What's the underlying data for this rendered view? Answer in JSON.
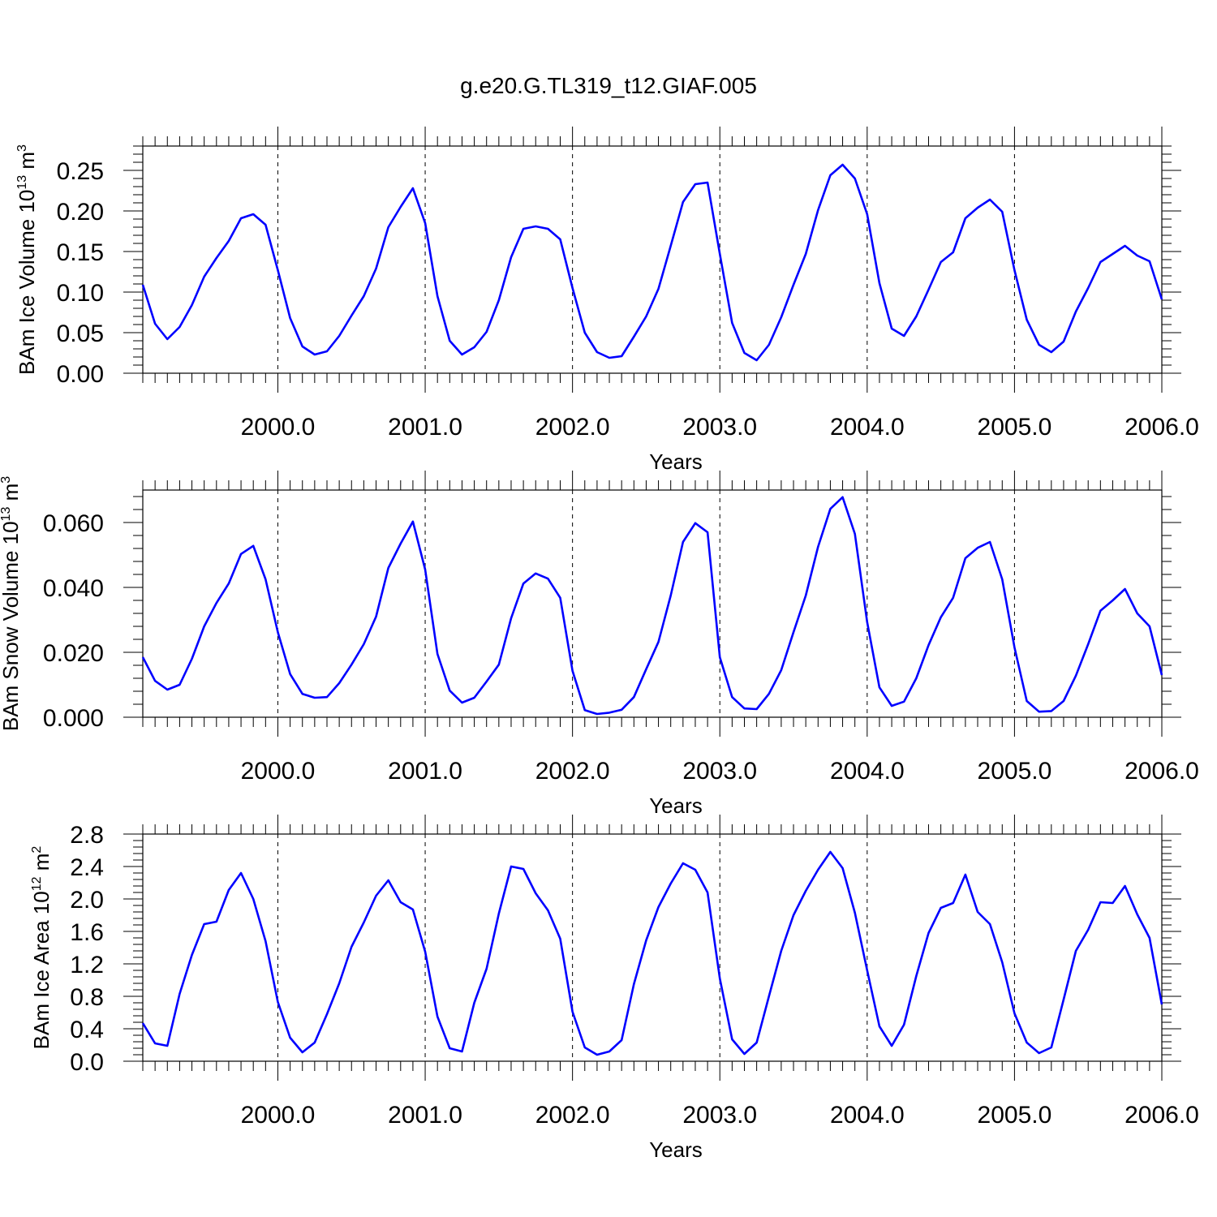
{
  "title": "g.e20.G.TL319_t12.GIAF.005",
  "line_color": "#0000ff",
  "chart_data": [
    {
      "type": "line",
      "ylabel_main": "BAm Ice Volume 10",
      "ylabel_exp": "13",
      "ylabel_unit": " m",
      "ylabel_unit_exp": "3",
      "xlabel": "Years",
      "xlim": [
        1999.0833,
        2006.0
      ],
      "ylim": [
        0.0,
        0.28
      ],
      "yticks": [
        0.0,
        0.05,
        0.1,
        0.15,
        0.2,
        0.25
      ],
      "yticklabels": [
        "0.00",
        "0.05",
        "0.10",
        "0.15",
        "0.20",
        "0.25"
      ],
      "xticks": [
        2000,
        2001,
        2002,
        2003,
        2004,
        2005,
        2006
      ],
      "xticklabels": [
        "2000.0",
        "2001.0",
        "2002.0",
        "2003.0",
        "2004.0",
        "2005.0",
        "2006.0"
      ],
      "x_start": 1999.0833,
      "x_step": 0.083333,
      "series": [
        {
          "values": [
            0.109,
            0.061,
            0.042,
            0.057,
            0.084,
            0.119,
            0.142,
            0.163,
            0.191,
            0.196,
            0.183,
            0.127,
            0.068,
            0.033,
            0.023,
            0.027,
            0.046,
            0.071,
            0.095,
            0.129,
            0.18,
            0.205,
            0.228,
            0.185,
            0.095,
            0.04,
            0.023,
            0.032,
            0.051,
            0.09,
            0.143,
            0.178,
            0.181,
            0.178,
            0.165,
            0.105,
            0.05,
            0.026,
            0.019,
            0.021,
            0.045,
            0.07,
            0.104,
            0.157,
            0.211,
            0.233,
            0.235,
            0.147,
            0.062,
            0.025,
            0.016,
            0.035,
            0.069,
            0.109,
            0.147,
            0.201,
            0.244,
            0.257,
            0.24,
            0.196,
            0.111,
            0.055,
            0.046,
            0.07,
            0.103,
            0.137,
            0.149,
            0.191,
            0.204,
            0.214,
            0.199,
            0.127,
            0.066,
            0.035,
            0.026,
            0.039,
            0.076,
            0.105,
            0.137,
            0.147,
            0.157,
            0.145,
            0.138,
            0.091
          ]
        }
      ]
    },
    {
      "type": "line",
      "ylabel_main": "BAm Snow Volume 10",
      "ylabel_exp": "13",
      "ylabel_unit": " m",
      "ylabel_unit_exp": "3",
      "xlabel": "Years",
      "xlim": [
        1999.0833,
        2006.0
      ],
      "ylim": [
        0.0,
        0.07
      ],
      "yticks": [
        0.0,
        0.02,
        0.04,
        0.06
      ],
      "yticklabels": [
        "0.000",
        "0.020",
        "0.040",
        "0.060"
      ],
      "xticks": [
        2000,
        2001,
        2002,
        2003,
        2004,
        2005,
        2006
      ],
      "xticklabels": [
        "2000.0",
        "2001.0",
        "2002.0",
        "2003.0",
        "2004.0",
        "2005.0",
        "2006.0"
      ],
      "x_start": 1999.0833,
      "x_step": 0.083333,
      "series": [
        {
          "values": [
            0.0185,
            0.0112,
            0.0085,
            0.01,
            0.018,
            0.028,
            0.0352,
            0.0412,
            0.0503,
            0.0528,
            0.0425,
            0.0262,
            0.0133,
            0.0072,
            0.006,
            0.0062,
            0.0105,
            0.0162,
            0.0225,
            0.031,
            0.046,
            0.0535,
            0.0603,
            0.0455,
            0.0195,
            0.0082,
            0.0045,
            0.006,
            0.011,
            0.0162,
            0.0305,
            0.0412,
            0.0443,
            0.0427,
            0.0368,
            0.0143,
            0.0022,
            0.001,
            0.0014,
            0.0023,
            0.0062,
            0.0148,
            0.0232,
            0.0375,
            0.054,
            0.0598,
            0.057,
            0.0185,
            0.0062,
            0.0027,
            0.0025,
            0.0072,
            0.0145,
            0.0262,
            0.0375,
            0.0525,
            0.0642,
            0.0678,
            0.0565,
            0.0293,
            0.0092,
            0.0035,
            0.0048,
            0.012,
            0.0222,
            0.0308,
            0.0368,
            0.049,
            0.0522,
            0.054,
            0.0425,
            0.0215,
            0.005,
            0.0017,
            0.0019,
            0.005,
            0.0128,
            0.0225,
            0.0328,
            0.036,
            0.0395,
            0.032,
            0.028,
            0.013
          ]
        }
      ]
    },
    {
      "type": "line",
      "ylabel_main": "BAm Ice Area 10",
      "ylabel_exp": "12",
      "ylabel_unit": " m",
      "ylabel_unit_exp": "2",
      "xlabel": "Years",
      "xlim": [
        1999.0833,
        2006.0
      ],
      "ylim": [
        0.0,
        2.8
      ],
      "yticks": [
        0.0,
        0.4,
        0.8,
        1.2,
        1.6,
        2.0,
        2.4,
        2.8
      ],
      "yticklabels": [
        "0.0",
        "0.4",
        "0.8",
        "1.2",
        "1.6",
        "2.0",
        "2.4",
        "2.8"
      ],
      "xticks": [
        2000,
        2001,
        2002,
        2003,
        2004,
        2005,
        2006
      ],
      "xticklabels": [
        "2000.0",
        "2001.0",
        "2002.0",
        "2003.0",
        "2004.0",
        "2005.0",
        "2006.0"
      ],
      "x_start": 1999.0833,
      "x_step": 0.083333,
      "series": [
        {
          "values": [
            0.47,
            0.22,
            0.19,
            0.83,
            1.31,
            1.69,
            1.72,
            2.11,
            2.32,
            2.0,
            1.48,
            0.73,
            0.29,
            0.11,
            0.23,
            0.58,
            0.96,
            1.41,
            1.71,
            2.04,
            2.23,
            1.96,
            1.87,
            1.35,
            0.55,
            0.16,
            0.12,
            0.72,
            1.14,
            1.82,
            2.4,
            2.37,
            2.07,
            1.86,
            1.51,
            0.61,
            0.17,
            0.08,
            0.12,
            0.26,
            0.95,
            1.49,
            1.9,
            2.19,
            2.44,
            2.36,
            2.08,
            1.02,
            0.27,
            0.09,
            0.23,
            0.8,
            1.36,
            1.8,
            2.1,
            2.36,
            2.58,
            2.38,
            1.83,
            1.12,
            0.43,
            0.19,
            0.45,
            1.05,
            1.58,
            1.89,
            1.95,
            2.3,
            1.84,
            1.69,
            1.22,
            0.59,
            0.23,
            0.1,
            0.17,
            0.76,
            1.36,
            1.62,
            1.96,
            1.95,
            2.16,
            1.81,
            1.52,
            0.7
          ]
        }
      ]
    }
  ]
}
